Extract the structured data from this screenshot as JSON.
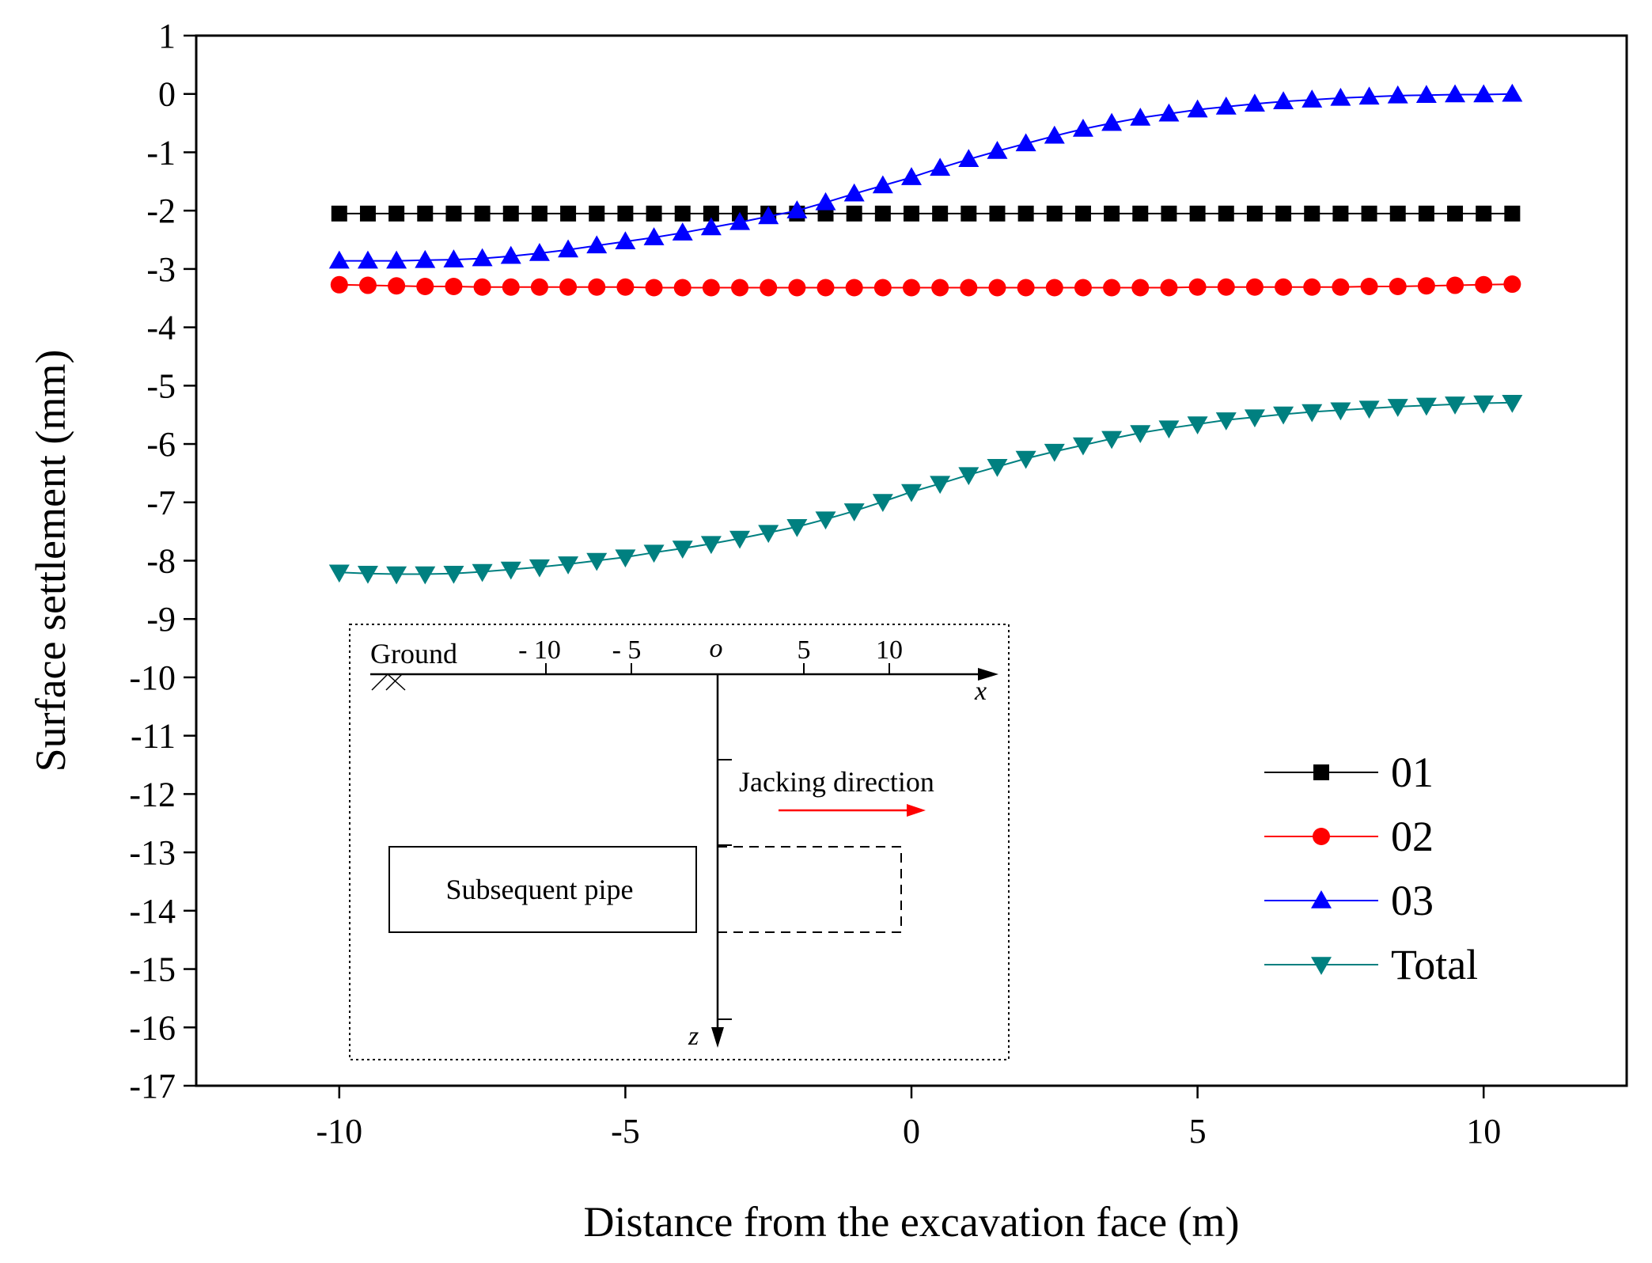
{
  "chart_data": {
    "type": "line",
    "title": "",
    "xlabel": "Distance from the excavation face (m)",
    "ylabel": "Surface settlement (mm)",
    "xlim": [
      -12.5,
      12.5
    ],
    "ylim": [
      -17,
      1
    ],
    "x_ticks": [
      -10,
      -5,
      0,
      5,
      10
    ],
    "y_ticks": [
      1,
      0,
      -1,
      -2,
      -3,
      -4,
      -5,
      -6,
      -7,
      -8,
      -9,
      -10,
      -11,
      -12,
      -13,
      -14,
      -15,
      -16,
      -17
    ],
    "grid": false,
    "legend_position": "right",
    "x": [
      -10,
      -9.5,
      -9,
      -8.5,
      -8,
      -7.5,
      -7,
      -6.5,
      -6,
      -5.5,
      -5,
      -4.5,
      -4,
      -3.5,
      -3,
      -2.5,
      -2,
      -1.5,
      -1,
      -0.5,
      0,
      0.5,
      1,
      1.5,
      2,
      2.5,
      3,
      3.5,
      4,
      4.5,
      5,
      5.5,
      6,
      6.5,
      7,
      7.5,
      8,
      8.5,
      9,
      9.5,
      10,
      10.5
    ],
    "series": [
      {
        "name": "01",
        "marker": "square",
        "color": "#000000",
        "values": [
          -2.05,
          -2.05,
          -2.05,
          -2.05,
          -2.05,
          -2.05,
          -2.05,
          -2.05,
          -2.05,
          -2.05,
          -2.05,
          -2.05,
          -2.05,
          -2.05,
          -2.05,
          -2.05,
          -2.05,
          -2.05,
          -2.05,
          -2.05,
          -2.05,
          -2.05,
          -2.05,
          -2.05,
          -2.05,
          -2.05,
          -2.05,
          -2.05,
          -2.05,
          -2.05,
          -2.05,
          -2.05,
          -2.05,
          -2.05,
          -2.05,
          -2.05,
          -2.05,
          -2.05,
          -2.05,
          -2.05,
          -2.05,
          -2.05
        ]
      },
      {
        "name": "02",
        "marker": "circle",
        "color": "#ff0000",
        "values": [
          -3.27,
          -3.28,
          -3.29,
          -3.3,
          -3.3,
          -3.31,
          -3.31,
          -3.31,
          -3.31,
          -3.31,
          -3.31,
          -3.32,
          -3.32,
          -3.32,
          -3.32,
          -3.32,
          -3.32,
          -3.32,
          -3.32,
          -3.32,
          -3.32,
          -3.32,
          -3.32,
          -3.32,
          -3.32,
          -3.32,
          -3.32,
          -3.32,
          -3.32,
          -3.32,
          -3.31,
          -3.31,
          -3.31,
          -3.31,
          -3.31,
          -3.31,
          -3.3,
          -3.3,
          -3.29,
          -3.28,
          -3.27,
          -3.26
        ]
      },
      {
        "name": "03",
        "marker": "triangle-up",
        "color": "#0000ff",
        "values": [
          -2.86,
          -2.86,
          -2.86,
          -2.85,
          -2.84,
          -2.82,
          -2.78,
          -2.73,
          -2.67,
          -2.6,
          -2.53,
          -2.46,
          -2.38,
          -2.29,
          -2.2,
          -2.1,
          -2.0,
          -1.86,
          -1.71,
          -1.57,
          -1.43,
          -1.27,
          -1.12,
          -0.98,
          -0.85,
          -0.72,
          -0.6,
          -0.5,
          -0.41,
          -0.34,
          -0.27,
          -0.22,
          -0.17,
          -0.13,
          -0.1,
          -0.07,
          -0.05,
          -0.03,
          -0.02,
          -0.01,
          -0.01,
          0.0
        ]
      },
      {
        "name": "Total",
        "marker": "triangle-down",
        "color": "#008080",
        "values": [
          -8.2,
          -8.22,
          -8.23,
          -8.23,
          -8.22,
          -8.19,
          -8.15,
          -8.11,
          -8.06,
          -8.0,
          -7.94,
          -7.86,
          -7.79,
          -7.71,
          -7.62,
          -7.52,
          -7.42,
          -7.29,
          -7.15,
          -6.99,
          -6.82,
          -6.68,
          -6.53,
          -6.39,
          -6.25,
          -6.13,
          -6.02,
          -5.91,
          -5.81,
          -5.73,
          -5.66,
          -5.59,
          -5.54,
          -5.49,
          -5.45,
          -5.42,
          -5.39,
          -5.36,
          -5.34,
          -5.32,
          -5.3,
          -5.29
        ]
      }
    ],
    "inset": {
      "ground_label": "Ground",
      "x_tick_labels": [
        "- 10",
        "- 5",
        "o",
        "5",
        "10"
      ],
      "x_axis_label": "x",
      "z_axis_label": "z",
      "jacking_label": "Jacking direction",
      "pipe_label": "Subsequent pipe",
      "arrow_color": "#ff0000"
    }
  }
}
